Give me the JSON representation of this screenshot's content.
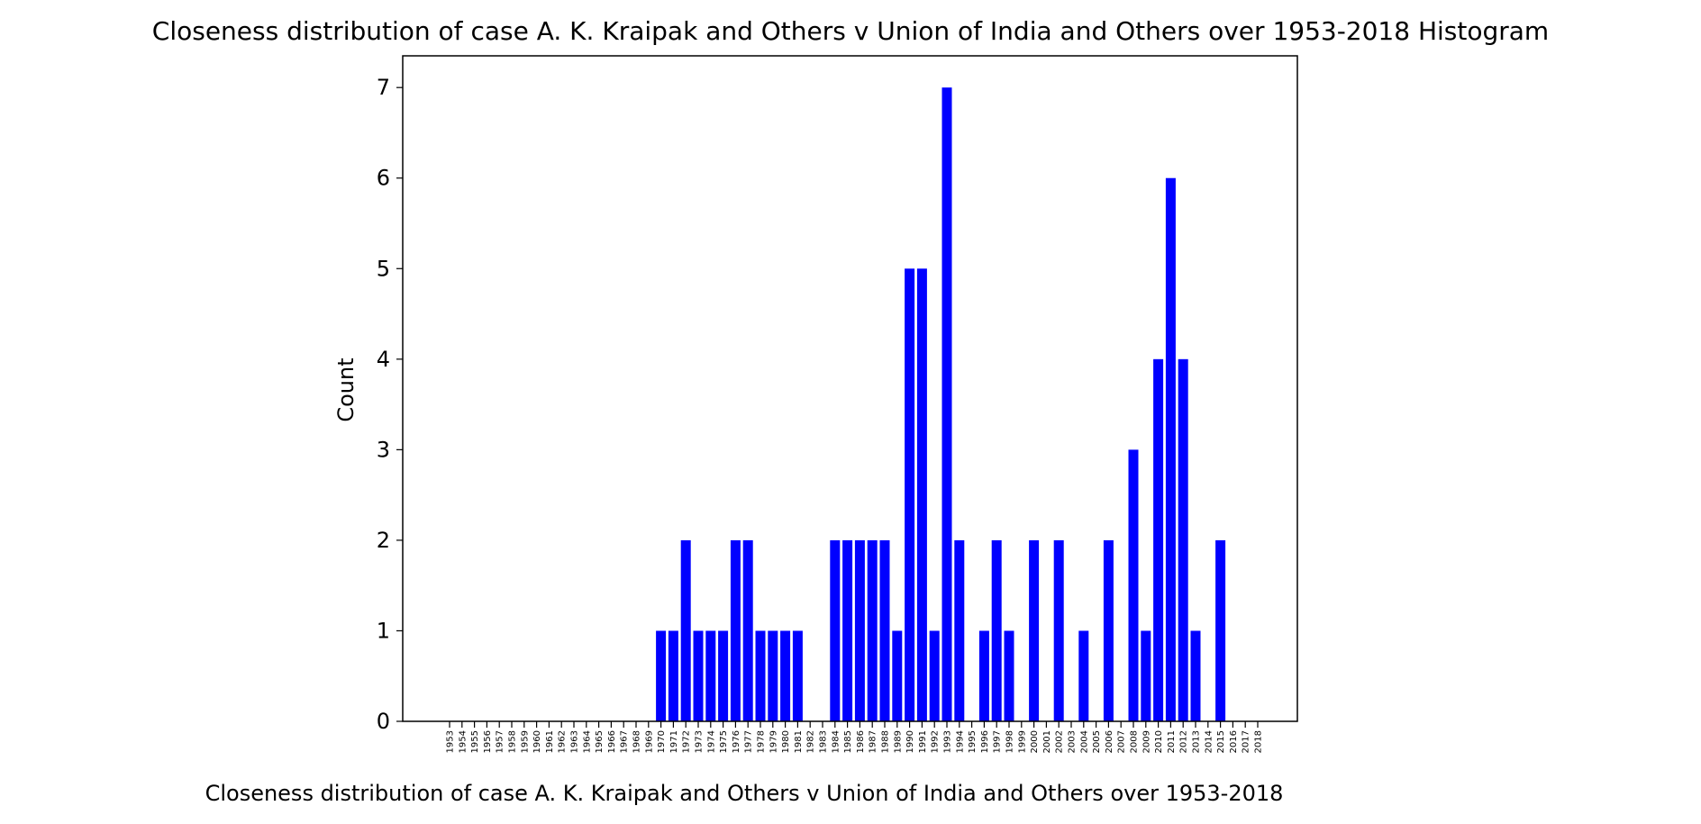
{
  "chart_data": {
    "type": "bar",
    "title": "Closeness distribution of case A. K. Kraipak and Others v Union of India and Others over 1953-2018 Histogram",
    "xlabel": "Closeness distribution of case A. K. Kraipak and Others v Union of India and Others over 1953-2018",
    "ylabel": "Count",
    "ylim": [
      0,
      7.35
    ],
    "yticks": [
      "0",
      "1",
      "2",
      "3",
      "4",
      "5",
      "6",
      "7"
    ],
    "bar_color": "#0000ff",
    "grid": false,
    "categories": [
      "1953",
      "1954",
      "1955",
      "1956",
      "1957",
      "1958",
      "1959",
      "1960",
      "1961",
      "1962",
      "1963",
      "1964",
      "1965",
      "1966",
      "1967",
      "1968",
      "1969",
      "1970",
      "1971",
      "1972",
      "1973",
      "1974",
      "1975",
      "1976",
      "1977",
      "1978",
      "1979",
      "1980",
      "1981",
      "1982",
      "1983",
      "1984",
      "1985",
      "1986",
      "1987",
      "1988",
      "1989",
      "1990",
      "1991",
      "1992",
      "1993",
      "1994",
      "1995",
      "1996",
      "1997",
      "1998",
      "1999",
      "2000",
      "2001",
      "2002",
      "2003",
      "2004",
      "2005",
      "2006",
      "2007",
      "2008",
      "2009",
      "2010",
      "2011",
      "2012",
      "2013",
      "2014",
      "2015",
      "2016",
      "2017",
      "2018"
    ],
    "values": [
      0,
      0,
      0,
      0,
      0,
      0,
      0,
      0,
      0,
      0,
      0,
      0,
      0,
      0,
      0,
      0,
      0,
      1,
      1,
      2,
      1,
      1,
      1,
      2,
      2,
      1,
      1,
      1,
      1,
      0,
      0,
      2,
      2,
      2,
      2,
      2,
      1,
      5,
      5,
      1,
      7,
      2,
      0,
      1,
      2,
      1,
      0,
      2,
      0,
      2,
      0,
      1,
      0,
      2,
      0,
      3,
      1,
      4,
      6,
      4,
      1,
      0,
      2,
      0,
      0,
      0
    ]
  }
}
